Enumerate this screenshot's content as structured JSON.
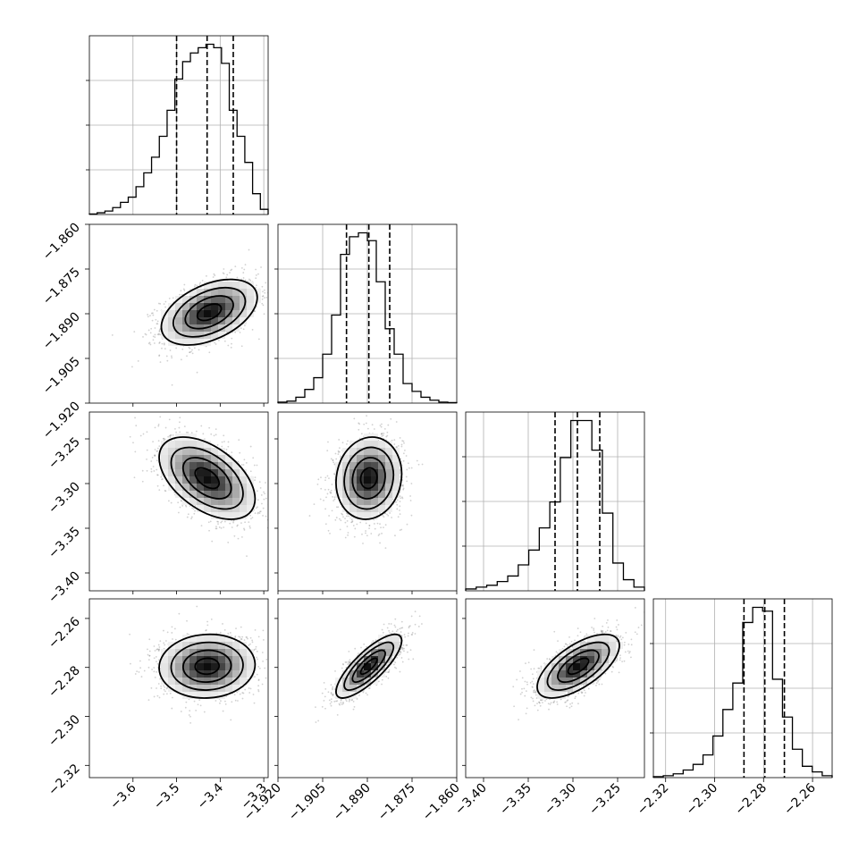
{
  "chart_data": {
    "type": "corner",
    "parameters": [
      {
        "index": 0,
        "range": [
          -3.7,
          -3.29
        ],
        "ticks": [
          -3.6,
          -3.5,
          -3.4,
          -3.3
        ],
        "tick_labels": [
          "−3.6",
          "−3.5",
          "−3.4",
          "−3.3"
        ],
        "quantiles": [
          -3.5,
          -3.43,
          -3.37
        ],
        "hist_y": [
          0.3,
          1,
          2,
          4,
          7,
          10,
          16,
          24,
          33,
          45,
          60,
          78,
          88,
          93,
          96,
          98,
          96,
          87,
          60,
          45,
          30,
          12,
          3
        ]
      },
      {
        "index": 1,
        "range": [
          -1.92,
          -1.86
        ],
        "ticks": [
          -1.92,
          -1.905,
          -1.89,
          -1.875,
          -1.86
        ],
        "tick_labels": [
          "−1.920",
          "−1.905",
          "−1.890",
          "−1.875",
          "−1.860"
        ],
        "quantiles": [
          -1.897,
          -1.8895,
          -1.8825
        ],
        "hist_y": [
          0.5,
          1,
          3,
          7,
          13,
          25,
          45,
          76,
          85,
          87,
          83,
          62,
          38,
          25,
          10,
          6,
          3,
          1.5,
          0.5,
          0.3
        ]
      },
      {
        "index": 2,
        "range": [
          -3.42,
          -3.22
        ],
        "ticks": [
          -3.4,
          -3.35,
          -3.3,
          -3.25
        ],
        "tick_labels": [
          "−3.40",
          "−3.35",
          "−3.30",
          "−3.25"
        ],
        "quantiles": [
          -3.32,
          -3.295,
          -3.27
        ],
        "hist_y": [
          1,
          2,
          3,
          5,
          8,
          14,
          22,
          34,
          48,
          72,
          92,
          92,
          76,
          42,
          15,
          6,
          2
        ]
      },
      {
        "index": 3,
        "range": [
          -2.325,
          -2.252
        ],
        "ticks": [
          -2.32,
          -2.3,
          -2.28,
          -2.26
        ],
        "tick_labels": [
          "−2.32",
          "−2.30",
          "−2.28",
          "−2.26"
        ],
        "quantiles": [
          -2.288,
          -2.2795,
          -2.2715
        ],
        "hist_y": [
          0.5,
          1,
          2,
          4,
          7,
          12,
          22,
          36,
          50,
          82,
          90,
          88,
          52,
          32,
          15,
          6,
          3,
          1
        ]
      }
    ],
    "pairs": [
      {
        "row": 1,
        "col": 0,
        "center": [
          -3.425,
          -1.8895
        ],
        "sigma": [
          0.055,
          0.0055
        ],
        "correlation": 0.45
      },
      {
        "row": 2,
        "col": 0,
        "center": [
          -3.43,
          -3.294
        ],
        "sigma": [
          0.055,
          0.023
        ],
        "correlation": -0.5
      },
      {
        "row": 2,
        "col": 1,
        "center": [
          -1.8895,
          -3.294
        ],
        "sigma": [
          0.0055,
          0.023
        ],
        "correlation": 0.1
      },
      {
        "row": 3,
        "col": 0,
        "center": [
          -3.43,
          -2.2795
        ],
        "sigma": [
          0.055,
          0.0065
        ],
        "correlation": 0.05
      },
      {
        "row": 3,
        "col": 1,
        "center": [
          -1.8895,
          -2.2795
        ],
        "sigma": [
          0.0055,
          0.0065
        ],
        "correlation": 0.8
      },
      {
        "row": 3,
        "col": 2,
        "center": [
          -3.294,
          -2.2795
        ],
        "sigma": [
          0.023,
          0.0065
        ],
        "correlation": 0.65
      }
    ],
    "contour_levels_sigma": [
      0.5,
      1.0,
      1.5,
      2.0
    ],
    "grid": true,
    "histogram_style": "step",
    "quantile_line_style": "dashed"
  }
}
